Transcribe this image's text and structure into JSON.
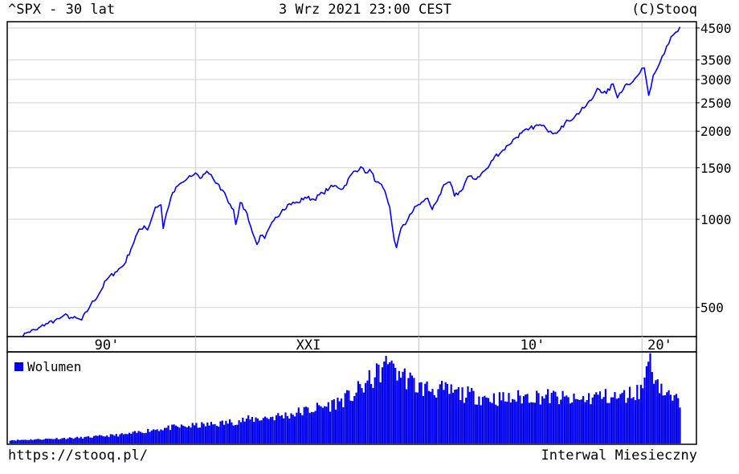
{
  "header": {
    "left": "^SPX - 30 lat",
    "center": "3 Wrz 2021 23:00 CEST",
    "right": "(C)Stooq"
  },
  "footer": {
    "left": "https://stooq.pl/",
    "right": "Interwal Miesieczny"
  },
  "colors": {
    "line": "#0000ff",
    "volume": "#0000ee",
    "grid": "#d8d8d8",
    "separator": "#d0d0d0"
  },
  "chart_data": [
    {
      "type": "line",
      "scale": "log",
      "ylim": [
        400,
        4700
      ],
      "yticks": [
        500,
        1000,
        1500,
        2000,
        2500,
        3000,
        3500,
        4500
      ],
      "ytick_labels": [
        "500",
        "1000",
        "1500",
        "2000",
        "2500",
        "3000",
        "3500",
        "4500"
      ],
      "xlim": [
        1991.6,
        2022.4
      ],
      "xticks": [
        {
          "at": 1990.0,
          "label": "90'",
          "line": false
        },
        {
          "at": 2000.0,
          "label": "XXI",
          "line": true
        },
        {
          "at": 2010.0,
          "label": "10'",
          "line": true
        },
        {
          "at": 2020.0,
          "label": "20'",
          "line": true
        }
      ],
      "series": [
        {
          "x": [
            1991.7,
            1991.9,
            1992.1,
            1992.5,
            1992.9,
            1993.3,
            1993.7,
            1993.9,
            1994.1,
            1994.5,
            1994.9,
            1995.3,
            1995.7,
            1996.0,
            1996.4,
            1996.8,
            1997.1,
            1997.4,
            1997.7,
            1997.85,
            1998.2,
            1998.45,
            1998.55,
            1998.7,
            1998.9,
            1999.2,
            1999.5,
            1999.8,
            2000.0,
            2000.2,
            2000.5,
            2000.7,
            2000.9,
            2001.2,
            2001.4,
            2001.7,
            2001.8,
            2002.0,
            2002.3,
            2002.55,
            2002.75,
            2002.9,
            2003.1,
            2003.5,
            2003.9,
            2004.2,
            2004.6,
            2004.9,
            2005.3,
            2005.7,
            2006.0,
            2006.3,
            2006.6,
            2007.0,
            2007.4,
            2007.6,
            2007.8,
            2008.1,
            2008.4,
            2008.7,
            2008.9,
            2009.0,
            2009.2,
            2009.4,
            2009.6,
            2009.9,
            2010.2,
            2010.4,
            2010.6,
            2010.9,
            2011.2,
            2011.4,
            2011.6,
            2011.9,
            2012.2,
            2012.5,
            2012.8,
            2013.1,
            2013.4,
            2013.7,
            2014.0,
            2014.3,
            2014.6,
            2014.9,
            2015.2,
            2015.5,
            2015.7,
            2015.9,
            2016.1,
            2016.4,
            2016.7,
            2017.0,
            2017.4,
            2017.8,
            2018.0,
            2018.1,
            2018.4,
            2018.7,
            2018.9,
            2019.0,
            2019.3,
            2019.6,
            2019.9,
            2020.1,
            2020.2,
            2020.3,
            2020.5,
            2020.7,
            2020.9,
            2021.1,
            2021.3,
            2021.5,
            2021.7
          ],
          "y": [
            380,
            375,
            395,
            412,
            420,
            440,
            452,
            458,
            470,
            460,
            453,
            510,
            560,
            620,
            660,
            700,
            790,
            900,
            950,
            920,
            1100,
            1120,
            930,
            1050,
            1190,
            1300,
            1350,
            1400,
            1440,
            1380,
            1460,
            1420,
            1330,
            1260,
            1180,
            1080,
            960,
            1140,
            1050,
            900,
            820,
            880,
            860,
            990,
            1080,
            1130,
            1140,
            1190,
            1170,
            1230,
            1280,
            1300,
            1270,
            1430,
            1510,
            1440,
            1480,
            1340,
            1280,
            1100,
            850,
            800,
            930,
            960,
            1040,
            1110,
            1150,
            1180,
            1080,
            1200,
            1320,
            1340,
            1200,
            1250,
            1400,
            1370,
            1430,
            1500,
            1640,
            1700,
            1790,
            1890,
            1970,
            2020,
            2080,
            2090,
            2040,
            2000,
            1970,
            2080,
            2170,
            2250,
            2400,
            2600,
            2800,
            2770,
            2690,
            2900,
            2600,
            2700,
            2900,
            2960,
            3160,
            3290,
            2950,
            2650,
            3100,
            3300,
            3600,
            3900,
            4200,
            4350,
            4540
          ]
        }
      ]
    },
    {
      "type": "bar",
      "legend": "Wolumen",
      "series": [
        {
          "name": "Wolumen",
          "x": [
            1992,
            1993,
            1994,
            1995,
            1996,
            1997,
            1998,
            1999,
            2000,
            2001,
            2002,
            2003,
            2004,
            2005,
            2006,
            2007,
            2008,
            2008.8,
            2009,
            2010,
            2011,
            2012,
            2013,
            2014,
            2015,
            2016,
            2017,
            2018,
            2019,
            2020,
            2020.25,
            2021,
            2021.6
          ],
          "y": [
            0.4,
            0.5,
            0.6,
            0.7,
            0.9,
            1.1,
            1.6,
            1.9,
            2.1,
            2.3,
            2.7,
            3.0,
            3.3,
            3.9,
            4.5,
            5.6,
            7.8,
            9.8,
            8.6,
            6.6,
            6.3,
            5.8,
            5.4,
            5.2,
            5.6,
            5.5,
            5.0,
            5.6,
            5.4,
            6.3,
            9.8,
            5.9,
            4.9
          ]
        }
      ]
    }
  ]
}
